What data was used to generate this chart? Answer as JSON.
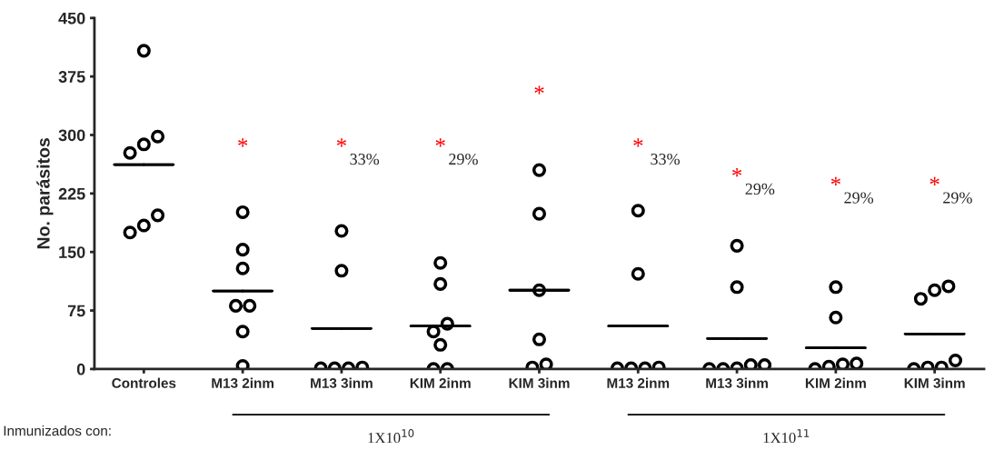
{
  "chart_data": {
    "type": "scatter",
    "ylabel": "No. parásitos",
    "categories": [
      "Controles",
      "M13 2inm",
      "M13 3inm",
      "KIM 2inm",
      "KIM 3inm",
      "M13 2inm",
      "M13 3inm",
      "KIM 2inm",
      "KIM 3inm"
    ],
    "ylim": [
      0,
      450
    ],
    "yticks": [
      0,
      75,
      150,
      225,
      300,
      375,
      450
    ],
    "grid": false,
    "legend": false,
    "series": [
      {
        "marker": "circle",
        "color": "#000000",
        "values": [
          408,
          201,
          177,
          136,
          255,
          203,
          158,
          105,
          101
        ]
      },
      {
        "marker": "circle",
        "color": "#000000",
        "values": [
          298,
          153,
          126,
          109,
          199,
          122,
          105,
          66,
          106
        ]
      },
      {
        "marker": "circle",
        "color": "#000000",
        "values": [
          277,
          129,
          1,
          58,
          101,
          1,
          5,
          3,
          90
        ]
      },
      {
        "marker": "circle",
        "color": "#000000",
        "values": [
          288,
          81,
          1,
          48,
          38,
          1,
          5,
          7,
          11
        ]
      },
      {
        "marker": "circle",
        "color": "#000000",
        "values": [
          197,
          81,
          1,
          31,
          2,
          1,
          0,
          6,
          2
        ]
      },
      {
        "marker": "circle",
        "color": "#000000",
        "values": [
          175,
          48,
          2,
          0,
          6,
          2,
          0,
          0,
          0
        ]
      },
      {
        "marker": "circle",
        "color": "#000000",
        "values": [
          184,
          4,
          null,
          0,
          null,
          null,
          1,
          null,
          2
        ]
      },
      {
        "type": "box",
        "color": "#000000",
        "boxes": [
          {
            "low": 262,
            "q1": 262,
            "median": 262,
            "q3": 262,
            "high": 262
          },
          {
            "low": 100,
            "q1": 100,
            "median": 100,
            "q3": 100,
            "high": 100
          },
          {
            "low": 52,
            "q1": 52,
            "median": 52,
            "q3": 52,
            "high": 52
          },
          {
            "low": 55,
            "q1": 55,
            "median": 55,
            "q3": 55,
            "high": 55
          },
          {
            "low": 101,
            "q1": 101,
            "median": 101,
            "q3": 101,
            "high": 101
          },
          {
            "low": 55,
            "q1": 55,
            "median": 55,
            "q3": 55,
            "high": 55
          },
          {
            "low": 39,
            "q1": 39,
            "median": 39,
            "q3": 39,
            "high": 39
          },
          {
            "low": 27,
            "q1": 27,
            "median": 27,
            "q3": 27,
            "high": 27
          },
          {
            "low": 45,
            "q1": 45,
            "median": 45,
            "q3": 45,
            "high": 45
          }
        ]
      }
    ],
    "annotations": [
      "*",
      "*33%",
      "*29%",
      "*",
      "* 33%",
      "*29%",
      "*29%",
      "*29%",
      "1X10$^{10}$",
      "1X10$^{11}$",
      "Inmunizados con:"
    ]
  }
}
